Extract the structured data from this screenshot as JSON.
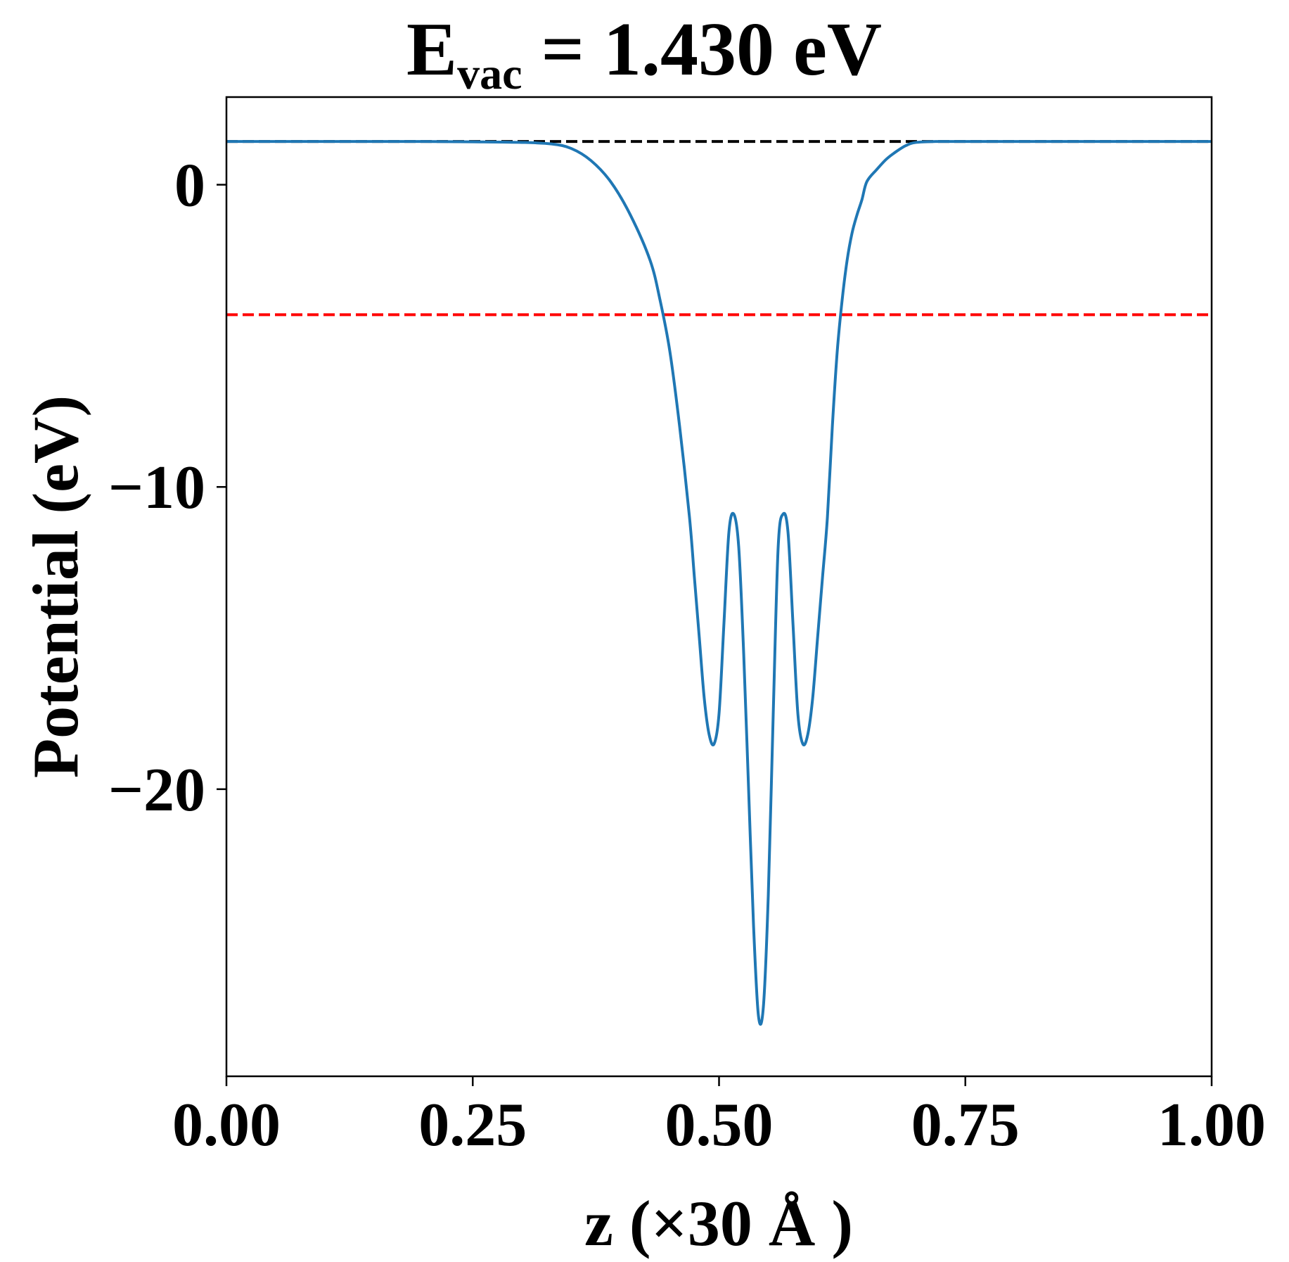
{
  "chart_data": {
    "type": "line",
    "title": {
      "main": "E",
      "subscript": "vac",
      "rest": " = 1.430 eV"
    },
    "xlabel": "z (×30 Å )",
    "ylabel": "Potential (eV)",
    "xlim": [
      0.0,
      1.0
    ],
    "ylim": [
      -29.5,
      2.9
    ],
    "xticks": [
      {
        "value": 0.0,
        "label": "0.00"
      },
      {
        "value": 0.25,
        "label": "0.25"
      },
      {
        "value": 0.5,
        "label": "0.50"
      },
      {
        "value": 0.75,
        "label": "0.75"
      },
      {
        "value": 1.0,
        "label": "1.00"
      }
    ],
    "yticks": [
      {
        "value": 0,
        "label": "0"
      },
      {
        "value": -10,
        "label": "−10"
      },
      {
        "value": -20,
        "label": "−20"
      }
    ],
    "grid": false,
    "legend": "none",
    "hlines": [
      {
        "y": 1.43,
        "color": "#000000",
        "style": "dashed"
      },
      {
        "y": -4.3,
        "color": "#ff0000",
        "style": "dashed"
      }
    ],
    "series": [
      {
        "color": "#1f77b4",
        "x": [
          0.0,
          0.05,
          0.1,
          0.15,
          0.2,
          0.25,
          0.3,
          0.33,
          0.35,
          0.37,
          0.39,
          0.41,
          0.43,
          0.44,
          0.45,
          0.46,
          0.47,
          0.475,
          0.48,
          0.485,
          0.49,
          0.495,
          0.5,
          0.505,
          0.51,
          0.515,
          0.52,
          0.525,
          0.53,
          0.535,
          0.54,
          0.545,
          0.55,
          0.555,
          0.56,
          0.565,
          0.57,
          0.575,
          0.58,
          0.585,
          0.59,
          0.595,
          0.6,
          0.605,
          0.61,
          0.615,
          0.62,
          0.625,
          0.63,
          0.635,
          0.64,
          0.645,
          0.65,
          0.66,
          0.67,
          0.68,
          0.69,
          0.7,
          0.72,
          0.74,
          0.76,
          0.78,
          0.8,
          0.85,
          0.9,
          0.95,
          1.0
        ],
        "y": [
          1.43,
          1.43,
          1.43,
          1.43,
          1.43,
          1.42,
          1.4,
          1.35,
          1.2,
          0.8,
          0.1,
          -1.0,
          -2.5,
          -3.8,
          -5.5,
          -8.0,
          -11.0,
          -13.0,
          -15.0,
          -17.0,
          -18.2,
          -18.5,
          -17.5,
          -14.5,
          -11.5,
          -10.9,
          -12.0,
          -15.5,
          -20.0,
          -24.5,
          -27.5,
          -27.2,
          -23.5,
          -17.5,
          -12.0,
          -10.9,
          -11.5,
          -14.5,
          -17.5,
          -18.5,
          -18.2,
          -17.0,
          -15.0,
          -13.0,
          -11.0,
          -8.0,
          -5.5,
          -3.8,
          -2.5,
          -1.6,
          -1.0,
          -0.5,
          0.1,
          0.5,
          0.85,
          1.1,
          1.3,
          1.4,
          1.43,
          1.43,
          1.43,
          1.43,
          1.43,
          1.43,
          1.43,
          1.43,
          1.43
        ]
      }
    ]
  }
}
